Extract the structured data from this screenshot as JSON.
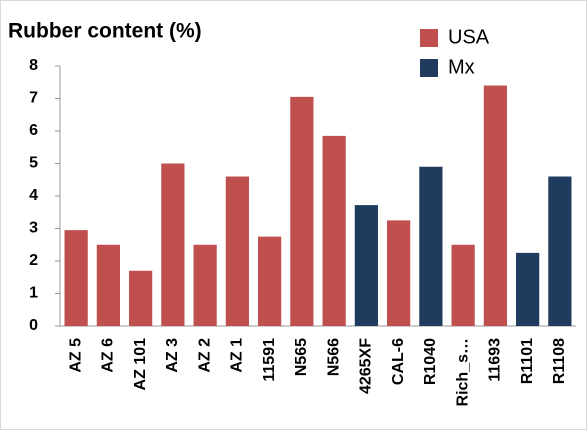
{
  "chart_data": {
    "type": "bar",
    "title": "Rubber content (%)",
    "categories": [
      "AZ 5",
      "AZ 6",
      "AZ 101",
      "AZ 3",
      "AZ 2",
      "AZ 1",
      "11591",
      "N565",
      "N566",
      "4265XF",
      "CAL-6",
      "R1040",
      "Rich_s…",
      "11693",
      "R1101",
      "R1108"
    ],
    "series": [
      {
        "name": "USA",
        "color": "#c0504d",
        "values": [
          2.95,
          2.5,
          1.7,
          5.0,
          2.5,
          4.6,
          2.75,
          7.05,
          5.85,
          null,
          3.25,
          null,
          2.5,
          7.4,
          null,
          null
        ]
      },
      {
        "name": "Mx",
        "color": "#1f3b5e",
        "values": [
          null,
          null,
          null,
          null,
          null,
          null,
          null,
          null,
          null,
          3.72,
          null,
          4.9,
          null,
          null,
          2.25,
          4.6
        ]
      }
    ],
    "ylim": [
      0,
      8
    ],
    "yticks": [
      0,
      1,
      2,
      3,
      4,
      5,
      6,
      7,
      8
    ],
    "grid": false,
    "legend": "top-right"
  }
}
